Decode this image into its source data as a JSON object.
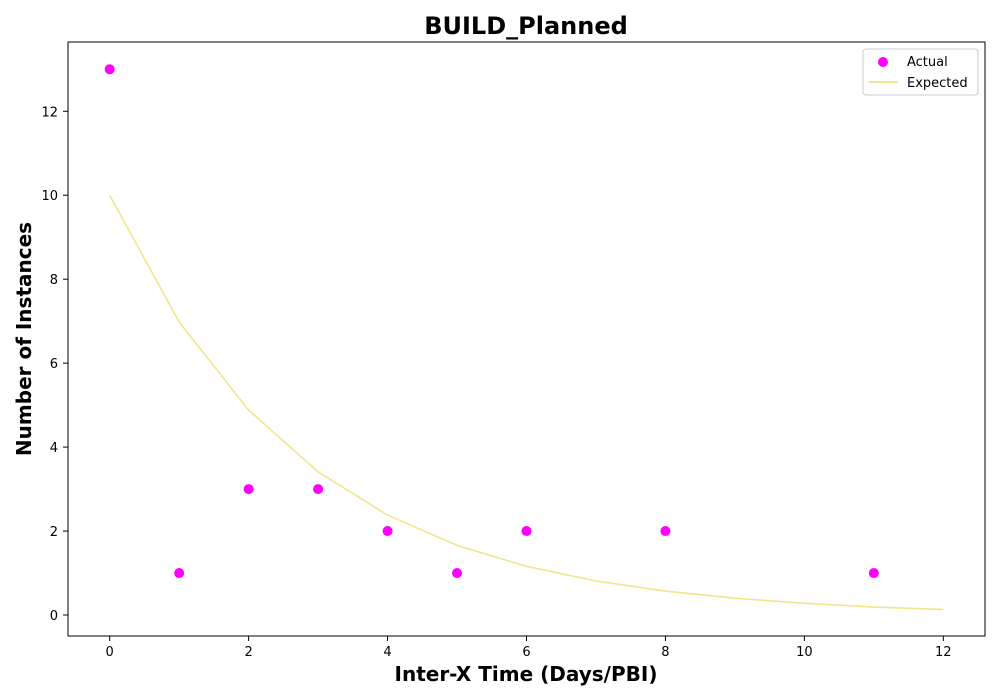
{
  "chart_data": {
    "type": "scatter",
    "title": "BUILD_Planned",
    "xlabel": "Inter-X Time (Days/PBI)",
    "ylabel": "Number of Instances",
    "xlim": [
      -0.6,
      12.6
    ],
    "ylim": [
      -0.5,
      13.65
    ],
    "xticks": [
      0,
      2,
      4,
      6,
      8,
      10,
      12
    ],
    "yticks": [
      0,
      2,
      4,
      6,
      8,
      10,
      12
    ],
    "grid": false,
    "legend_position": "top-right",
    "series": [
      {
        "name": "Actual",
        "kind": "scatter",
        "color": "#ff00ff",
        "x": [
          0,
          1,
          2,
          3,
          4,
          5,
          6,
          8,
          11
        ],
        "y": [
          13,
          1,
          3,
          3,
          2,
          1,
          2,
          2,
          1
        ]
      },
      {
        "name": "Expected",
        "kind": "line",
        "color": "#f0e68c",
        "x": [
          0,
          1,
          2,
          3,
          4,
          5,
          6,
          7,
          8,
          9,
          10,
          11,
          12
        ],
        "y": [
          10.0,
          6.98,
          4.88,
          3.41,
          2.38,
          1.66,
          1.16,
          0.81,
          0.57,
          0.4,
          0.28,
          0.19,
          0.13
        ]
      }
    ]
  }
}
